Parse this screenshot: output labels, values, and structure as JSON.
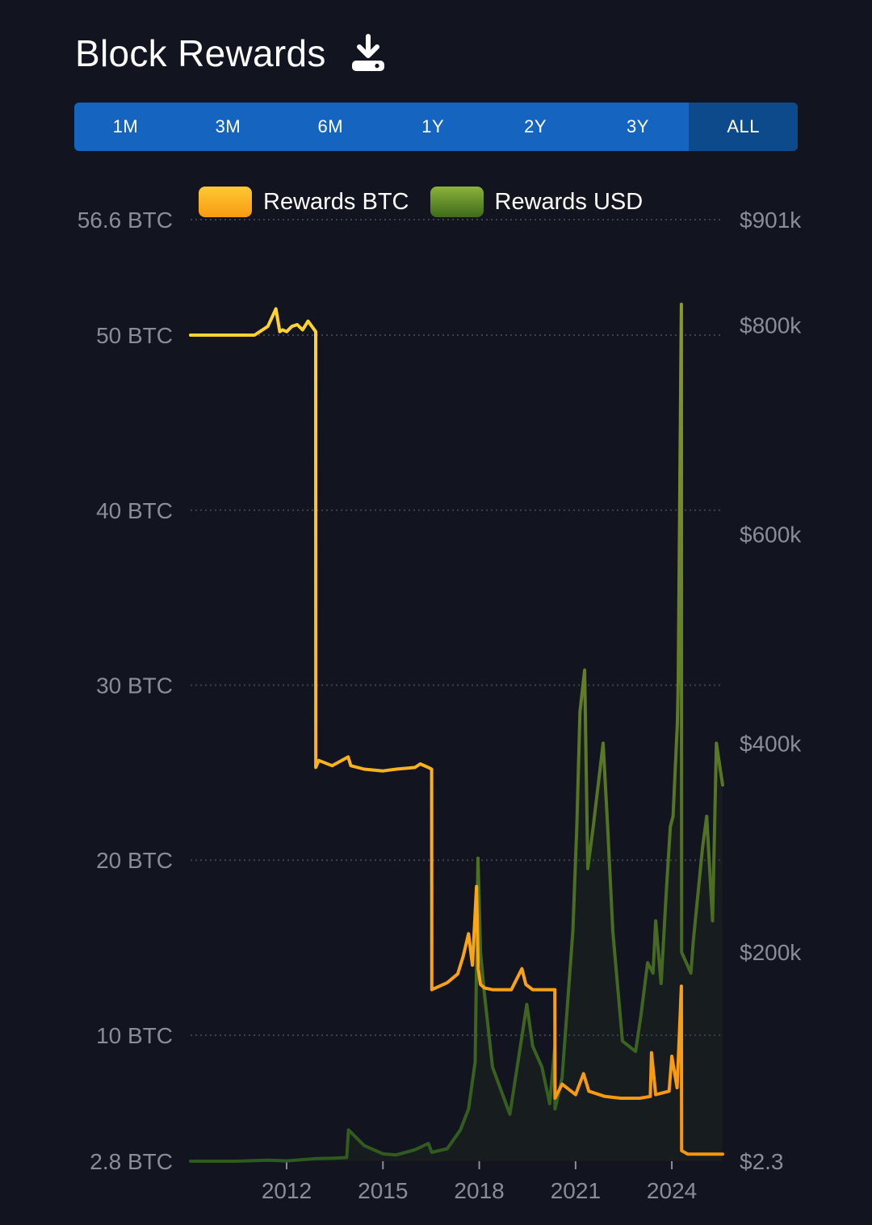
{
  "header": {
    "title": "Block Rewards"
  },
  "tabs": [
    {
      "label": "1M",
      "active": false
    },
    {
      "label": "3M",
      "active": false
    },
    {
      "label": "6M",
      "active": false
    },
    {
      "label": "1Y",
      "active": false
    },
    {
      "label": "2Y",
      "active": false
    },
    {
      "label": "3Y",
      "active": false
    },
    {
      "label": "ALL",
      "active": true
    }
  ],
  "legend": [
    {
      "label": "Rewards BTC",
      "color": "#f7a71c"
    },
    {
      "label": "Rewards USD",
      "color": "#5a8a25"
    }
  ],
  "colors": {
    "background": "#12141f",
    "tabs": "#1565c0",
    "tab_active": "#0d4a8c",
    "btc": "#f9b51e",
    "usd": "#6f8f2a"
  },
  "chart_data": {
    "type": "line",
    "x_range": [
      "2009-01-03",
      "2025-08-01"
    ],
    "x_ticks": [
      "2012",
      "2015",
      "2018",
      "2021",
      "2024"
    ],
    "y_left": {
      "tick_labels": [
        "56.6 BTC",
        "50 BTC",
        "40 BTC",
        "30 BTC",
        "20 BTC",
        "10 BTC",
        "2.8 BTC"
      ],
      "tick_values": [
        56.6,
        50,
        40,
        30,
        20,
        10,
        2.8
      ],
      "range": [
        2.8,
        56.6
      ]
    },
    "y_right": {
      "tick_labels": [
        "$901k",
        "$800k",
        "$600k",
        "$400k",
        "$200k",
        "$2.3"
      ],
      "tick_values": [
        901000,
        800000,
        600000,
        400000,
        200000,
        2.3
      ],
      "range": [
        2.3,
        901000
      ]
    },
    "grid": true,
    "series": [
      {
        "name": "Rewards BTC",
        "axis": "left",
        "x": [
          "2009-01-03",
          "2011-01-01",
          "2011-06-01",
          "2011-09-01",
          "2011-10-15",
          "2011-11-15",
          "2012-01-01",
          "2012-03-01",
          "2012-05-01",
          "2012-07-01",
          "2012-09-01",
          "2012-11-27",
          "2012-11-28",
          "2013-01-01",
          "2013-06-01",
          "2013-12-01",
          "2014-01-01",
          "2014-06-01",
          "2015-01-01",
          "2015-06-01",
          "2016-01-01",
          "2016-03-01",
          "2016-06-01",
          "2016-07-08",
          "2016-07-10",
          "2017-01-01",
          "2017-05-01",
          "2017-07-01",
          "2017-09-01",
          "2017-10-15",
          "2017-12-01",
          "2017-12-20",
          "2018-01-15",
          "2018-03-01",
          "2018-06-01",
          "2019-01-01",
          "2019-05-01",
          "2019-06-15",
          "2019-09-01",
          "2020-01-01",
          "2020-05-10",
          "2020-05-12",
          "2020-08-01",
          "2021-01-01",
          "2021-04-01",
          "2021-06-01",
          "2021-12-01",
          "2022-06-01",
          "2023-01-01",
          "2023-05-01",
          "2023-05-15",
          "2023-07-01",
          "2023-12-01",
          "2024-01-01",
          "2024-03-01",
          "2024-04-19",
          "2024-04-21",
          "2024-07-01",
          "2025-01-01",
          "2025-08-01"
        ],
        "values": [
          50,
          50,
          50.5,
          51.5,
          50.2,
          50.3,
          50.2,
          50.5,
          50.6,
          50.3,
          50.8,
          50.2,
          25.3,
          25.7,
          25.4,
          25.9,
          25.4,
          25.2,
          25.1,
          25.2,
          25.3,
          25.5,
          25.3,
          25.2,
          12.6,
          13.0,
          13.5,
          14.5,
          15.8,
          14.0,
          18.5,
          13.8,
          12.9,
          12.7,
          12.6,
          12.6,
          13.8,
          12.9,
          12.6,
          12.6,
          12.6,
          6.4,
          7.2,
          6.6,
          7.8,
          6.8,
          6.5,
          6.4,
          6.4,
          6.5,
          9.0,
          6.6,
          6.8,
          8.8,
          7.0,
          12.8,
          3.4,
          3.2,
          3.2,
          3.2
        ]
      },
      {
        "name": "Rewards USD",
        "axis": "right",
        "x": [
          "2009-01-03",
          "2010-06-01",
          "2011-06-01",
          "2012-01-01",
          "2012-11-27",
          "2013-06-01",
          "2013-11-15",
          "2013-12-05",
          "2014-06-01",
          "2015-01-01",
          "2015-06-01",
          "2016-01-01",
          "2016-06-01",
          "2016-07-10",
          "2017-01-01",
          "2017-06-01",
          "2017-09-01",
          "2017-11-15",
          "2017-12-17",
          "2018-01-15",
          "2018-03-01",
          "2018-06-01",
          "2018-12-15",
          "2019-06-26",
          "2019-09-01",
          "2019-12-15",
          "2020-03-12",
          "2020-05-10",
          "2020-05-12",
          "2020-08-01",
          "2020-12-01",
          "2021-01-15",
          "2021-02-20",
          "2021-04-14",
          "2021-05-20",
          "2021-07-20",
          "2021-09-01",
          "2021-11-10",
          "2022-01-01",
          "2022-03-01",
          "2022-06-18",
          "2022-11-15",
          "2023-01-15",
          "2023-04-01",
          "2023-06-01",
          "2023-07-01",
          "2023-09-01",
          "2023-11-01",
          "2023-12-15",
          "2024-01-15",
          "2024-03-05",
          "2024-03-14",
          "2024-04-19",
          "2024-04-21",
          "2024-08-05",
          "2024-09-01",
          "2024-12-15",
          "2025-02-01",
          "2025-04-08",
          "2025-05-22",
          "2025-07-14",
          "2025-08-01"
        ],
        "values": [
          2.3,
          5,
          900,
          300,
          2500,
          2800,
          3500,
          30000,
          15000,
          7000,
          6000,
          11000,
          17000,
          8500,
          12000,
          30000,
          50000,
          95000,
          290000,
          200000,
          160000,
          90000,
          45000,
          150000,
          110000,
          90000,
          55000,
          110000,
          50000,
          80000,
          220000,
          320000,
          430000,
          470000,
          280000,
          320000,
          350000,
          400000,
          320000,
          220000,
          115000,
          105000,
          140000,
          190000,
          180000,
          230000,
          170000,
          260000,
          320000,
          330000,
          420000,
          460000,
          820000,
          200000,
          180000,
          210000,
          300000,
          330000,
          230000,
          400000,
          370000,
          360000
        ]
      }
    ]
  }
}
